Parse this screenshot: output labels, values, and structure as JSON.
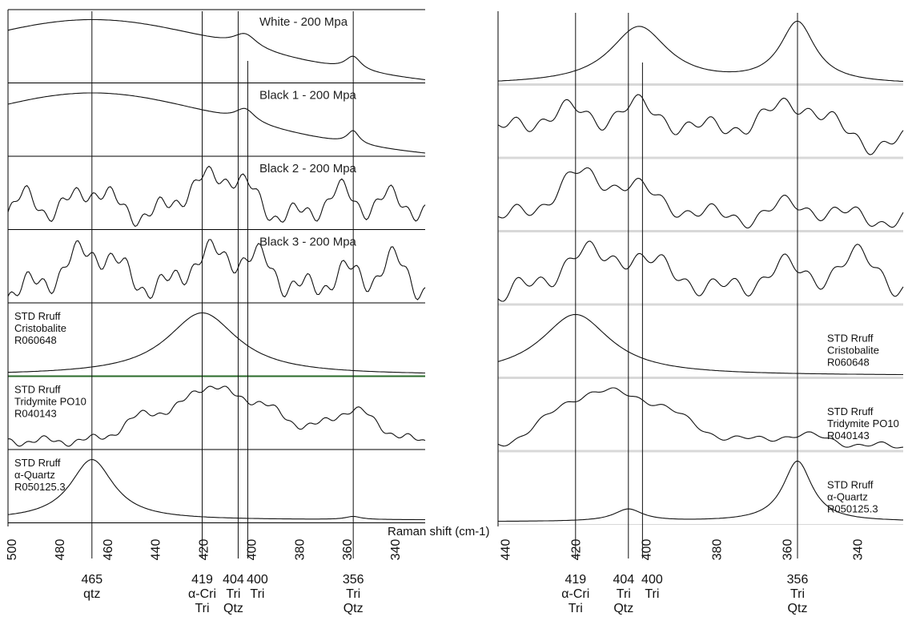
{
  "chart_data": [
    {
      "type": "line",
      "xlabel": "Raman shift (cm-1)",
      "x_range": [
        500,
        326
      ],
      "x_ticks": [
        500,
        480,
        460,
        440,
        420,
        400,
        380,
        360,
        340
      ],
      "x_tick_labels": [
        "500",
        "480",
        "460",
        "440",
        "420",
        "400",
        "380",
        "360",
        "340"
      ],
      "panels": [
        {
          "key": "white",
          "label_lines": [
            "White  - 200 Mpa"
          ],
          "peaks": [
            [
              465,
              13,
              95
            ],
            [
              401,
              2,
              6
            ],
            [
              356,
              2,
              4
            ]
          ],
          "wiggle": 0
        },
        {
          "key": "black1",
          "label_lines": [
            "Black 1 - 200 Mpa"
          ],
          "peaks": [
            [
              465,
              13,
              90
            ],
            [
              401,
              2,
              5
            ],
            [
              356,
              2,
              3
            ]
          ],
          "wiggle": 0
        },
        {
          "key": "black2",
          "label_lines": [
            "Black 2 - 200 Mpa"
          ],
          "peaks": [
            [
              465,
              45,
              8
            ],
            [
              419,
              55,
              9
            ],
            [
              404,
              50,
              7
            ],
            [
              492,
              30,
              5
            ],
            [
              362,
              40,
              6
            ],
            [
              340,
              30,
              7
            ]
          ],
          "wiggle": 3
        },
        {
          "key": "black3",
          "label_lines": [
            "Black 3 - 200 Mpa"
          ],
          "peaks": [
            [
              465,
              55,
              11
            ],
            [
              419,
              45,
              7
            ],
            [
              404,
              40,
              7
            ],
            [
              360,
              25,
              6
            ],
            [
              340,
              40,
              6
            ],
            [
              392,
              30,
              5
            ]
          ],
          "wiggle": 3
        },
        {
          "key": "cristobalite",
          "label_lines": [
            "STD Rruff",
            "Cristobalite",
            "R060648"
          ],
          "peaks": [
            [
              419,
              65,
              18
            ]
          ],
          "wiggle": 0
        },
        {
          "key": "tridymite",
          "label_lines": [
            "STD Rruff",
            "Tridymite PO10",
            "R040143"
          ],
          "peaks": [
            [
              419,
              50,
              8
            ],
            [
              400,
              60,
              15
            ],
            [
              441,
              40,
              10
            ],
            [
              356,
              45,
              10
            ]
          ],
          "wiggle": 1
        },
        {
          "key": "quartz",
          "label_lines": [
            "STD Rruff",
            "α-Quartz",
            "R050125.3"
          ],
          "peaks": [
            [
              465,
              100,
              11
            ],
            [
              356,
              5,
              4
            ]
          ],
          "wiggle": 0
        }
      ],
      "marker_lines": [
        {
          "key": "465",
          "x": 465,
          "label_lines": [
            "465",
            "qtz"
          ]
        },
        {
          "key": "419",
          "x": 419,
          "label_lines": [
            "419",
            "α-Cri",
            "Tri"
          ]
        },
        {
          "key": "404",
          "x": 404,
          "label_lines": [
            "404",
            "Tri",
            "Qtz"
          ]
        },
        {
          "key": "400",
          "x": 400,
          "label_lines": [
            "400",
            "Tri"
          ]
        },
        {
          "key": "356",
          "x": 356,
          "label_lines": [
            "356",
            "Tri",
            "Qtz"
          ]
        }
      ]
    },
    {
      "type": "line",
      "x_range": [
        441,
        326
      ],
      "x_ticks": [
        440,
        420,
        400,
        380,
        360,
        340
      ],
      "x_tick_labels": [
        "440",
        "420",
        "400",
        "380",
        "360",
        "340"
      ],
      "panels": [
        {
          "key": "r1",
          "label_lines": [],
          "peaks": [
            [
              401,
              80,
              10
            ],
            [
              356,
              85,
              6
            ]
          ],
          "wiggle": 0
        },
        {
          "key": "r2",
          "label_lines": [],
          "peaks": [
            [
              401,
              60,
              10
            ],
            [
              356,
              70,
              8
            ],
            [
              430,
              40,
              8
            ],
            [
              375,
              25,
              6
            ],
            [
              419,
              25,
              5
            ]
          ],
          "wiggle": 3
        },
        {
          "key": "r3",
          "label_lines": [],
          "peaks": [
            [
              419,
              80,
              7
            ],
            [
              404,
              60,
              6
            ],
            [
              356,
              25,
              8
            ],
            [
              390,
              20,
              6
            ]
          ],
          "wiggle": 3
        },
        {
          "key": "r4",
          "label_lines": [],
          "peaks": [
            [
              419,
              55,
              6
            ],
            [
              404,
              55,
              6
            ],
            [
              362,
              40,
              5
            ],
            [
              340,
              50,
              8
            ],
            [
              390,
              25,
              6
            ]
          ],
          "wiggle": 3
        },
        {
          "key": "r5cristobalite",
          "label_lines": [
            "STD Rruff",
            "Cristobalite",
            "R060648"
          ],
          "peaks": [
            [
              419,
              85,
              12
            ]
          ],
          "wiggle": 0
        },
        {
          "key": "r6tridymite",
          "label_lines": [
            "STD Rruff",
            "Tridymite PO10",
            "R040143"
          ],
          "peaks": [
            [
              419,
              60,
              10
            ],
            [
              400,
              75,
              13
            ],
            [
              356,
              20,
              10
            ]
          ],
          "wiggle": 1
        },
        {
          "key": "r7quartz",
          "label_lines": [
            "STD Rruff",
            "α-Quartz",
            "R050125.3"
          ],
          "peaks": [
            [
              356,
              90,
              5
            ],
            [
              404,
              18,
              5
            ]
          ],
          "wiggle": 0
        }
      ],
      "marker_lines": [
        {
          "key": "419",
          "x": 419,
          "label_lines": [
            "419",
            "α-Cri",
            "Tri"
          ]
        },
        {
          "key": "404",
          "x": 404,
          "label_lines": [
            "404",
            "Tri",
            "Qtz"
          ]
        },
        {
          "key": "400",
          "x": 400,
          "label_lines": [
            "400",
            "Tri"
          ]
        },
        {
          "key": "356",
          "x": 356,
          "label_lines": [
            "356",
            "Tri",
            "Qtz"
          ]
        }
      ]
    }
  ]
}
